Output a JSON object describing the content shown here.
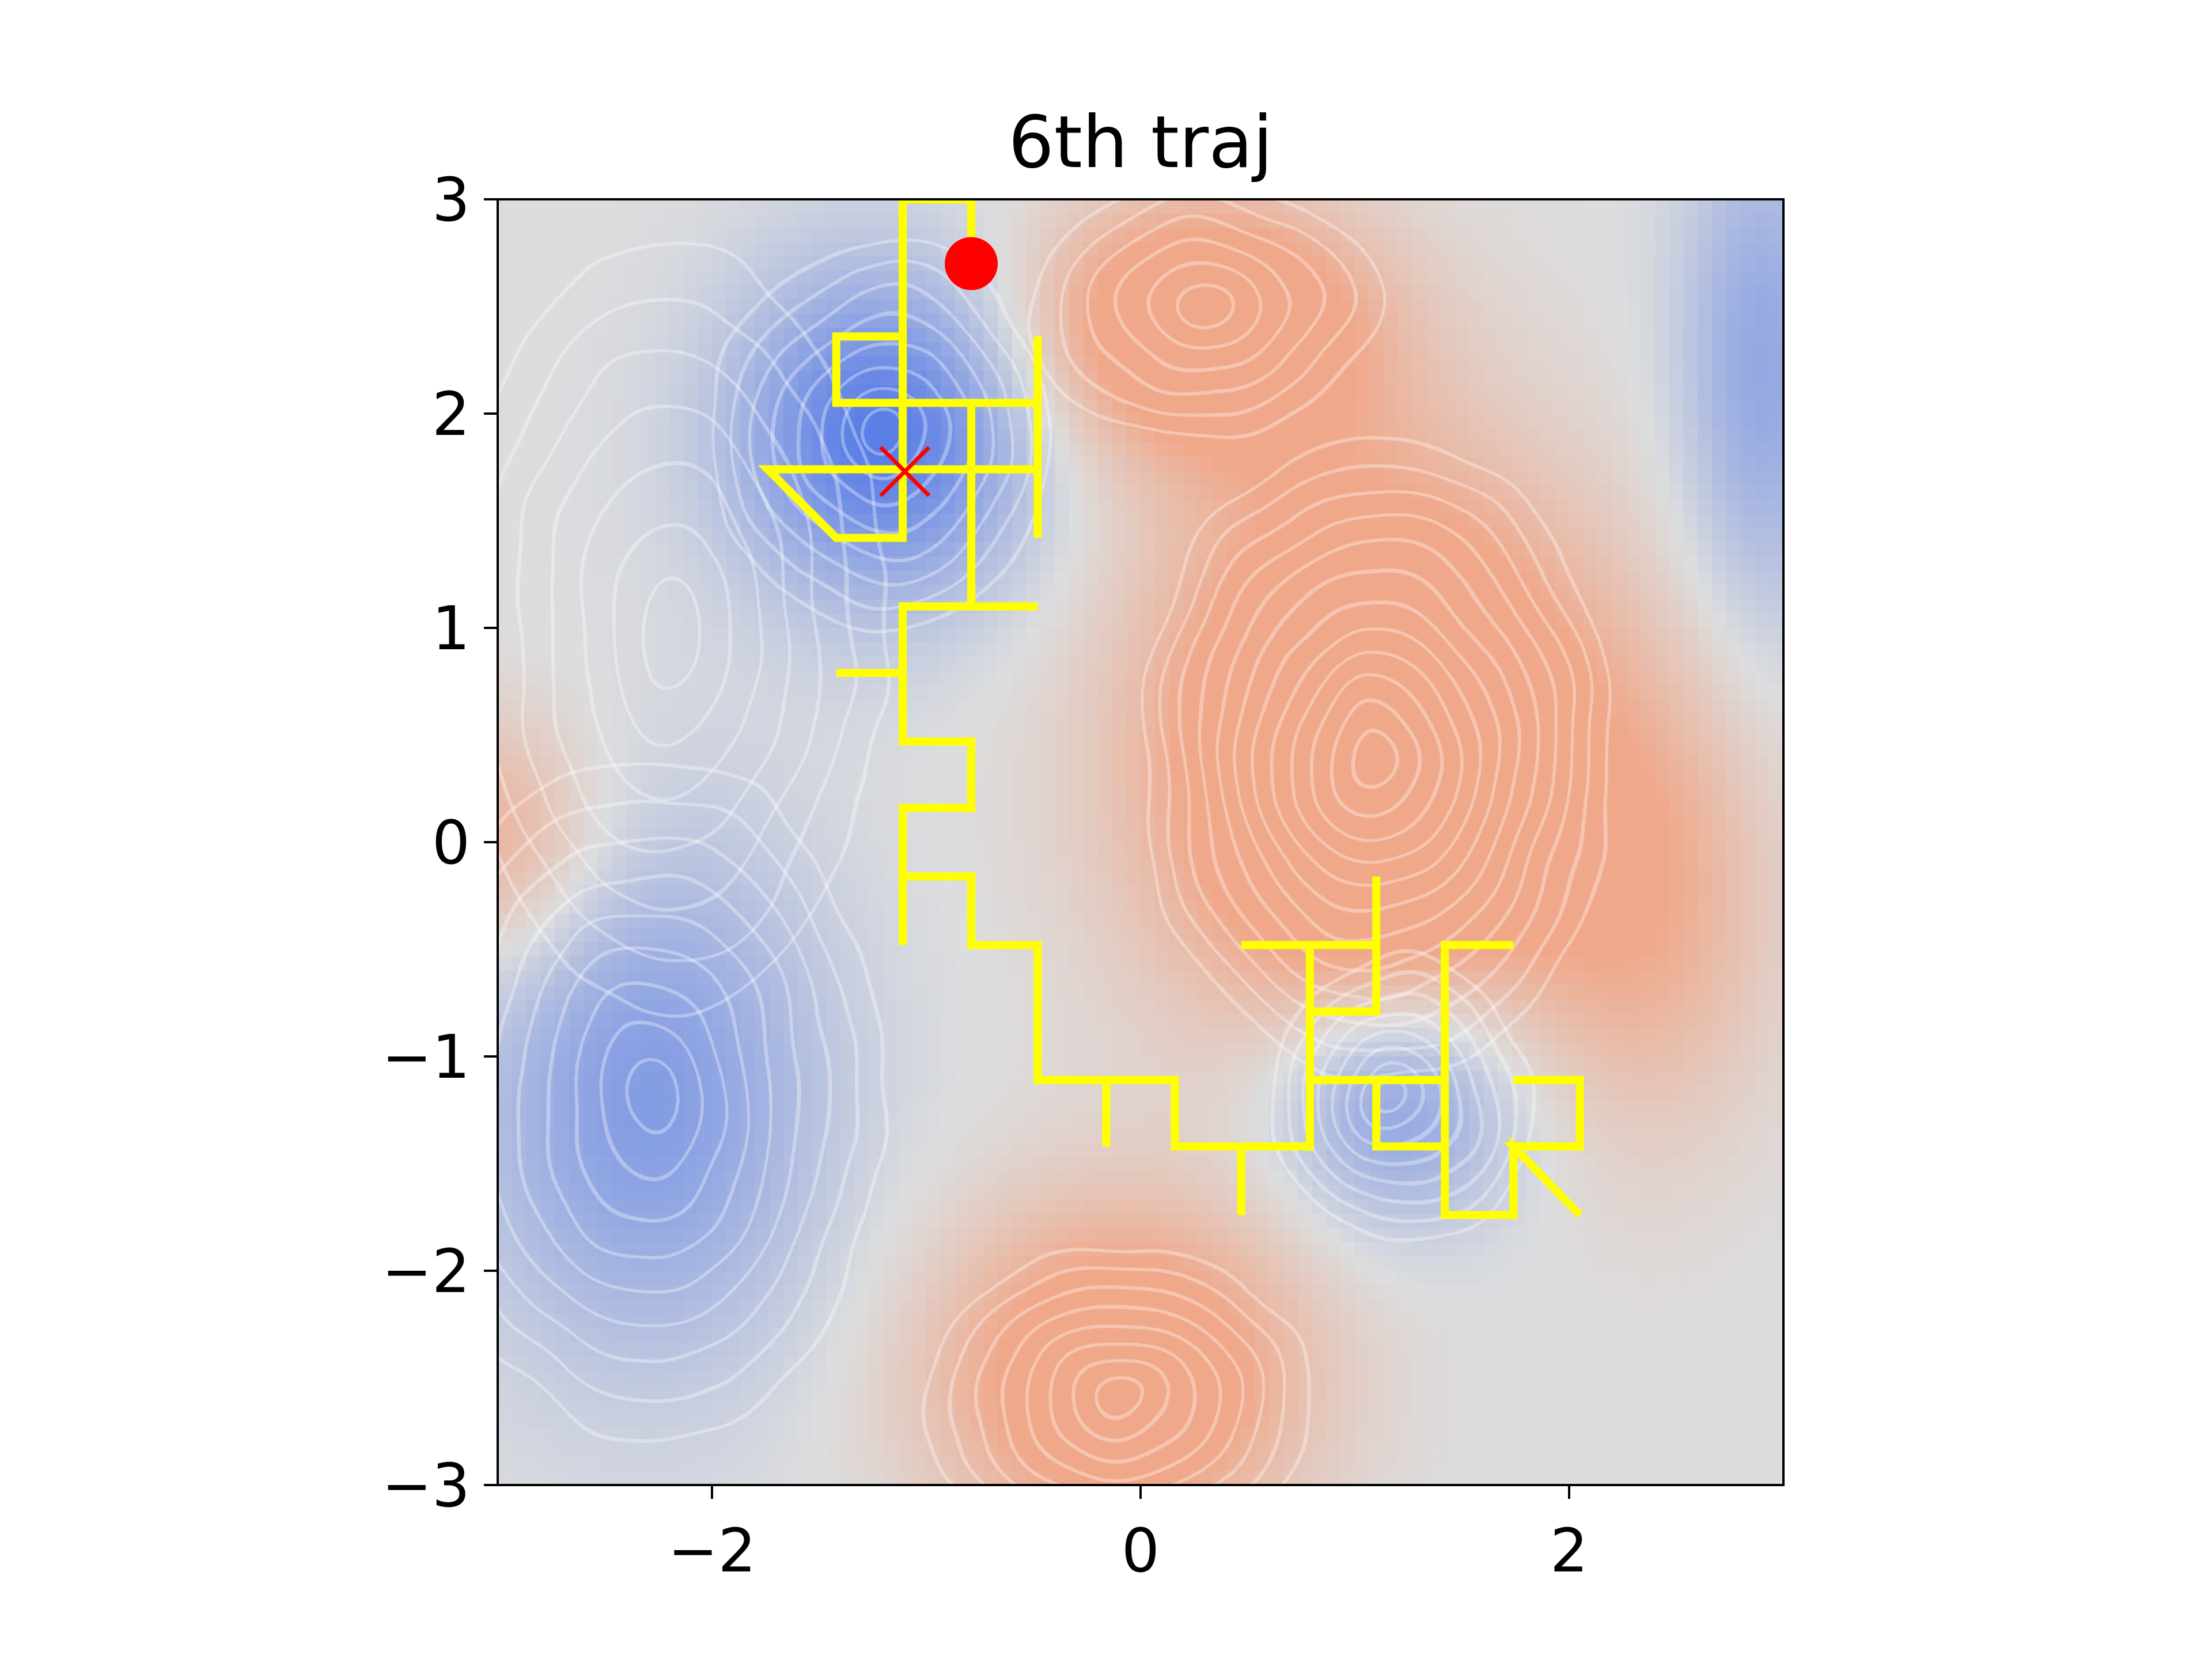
{
  "chart_data": {
    "type": "heatmap",
    "title": "6th traj",
    "xlabel": "",
    "ylabel": "",
    "xlim": [
      -3,
      3
    ],
    "ylim": [
      -3,
      3
    ],
    "x_ticks": [
      {
        "value": -2,
        "label": "−2"
      },
      {
        "value": 0,
        "label": "0"
      },
      {
        "value": 2,
        "label": "2"
      }
    ],
    "y_ticks": [
      {
        "value": 3,
        "label": "3"
      },
      {
        "value": 2,
        "label": "2"
      },
      {
        "value": 1,
        "label": "1"
      },
      {
        "value": 0,
        "label": "0"
      },
      {
        "value": -1,
        "label": "−1"
      },
      {
        "value": -2,
        "label": "−2"
      },
      {
        "value": -3,
        "label": "−3"
      }
    ],
    "colormap": "coolwarm (clipped)",
    "grid": false,
    "trajectory": {
      "color": "#ffff00",
      "points": [
        [
          -0.79,
          2.7
        ],
        [
          -0.79,
          3.0
        ],
        [
          -1.11,
          3.0
        ],
        [
          -1.11,
          2.36
        ],
        [
          -1.42,
          2.36
        ],
        [
          -1.42,
          2.05
        ],
        [
          -0.48,
          2.05
        ],
        [
          -0.48,
          2.36
        ],
        [
          -0.48,
          1.42
        ],
        [
          -0.48,
          1.74
        ],
        [
          -1.42,
          1.74
        ],
        [
          -1.42,
          1.74
        ],
        [
          -1.74,
          1.74
        ],
        [
          -1.42,
          1.42
        ],
        [
          -1.11,
          1.42
        ],
        [
          -1.11,
          2.36
        ],
        [
          -1.11,
          2.05
        ],
        [
          -0.79,
          2.05
        ],
        [
          -0.79,
          1.1
        ],
        [
          -1.11,
          1.1
        ],
        [
          -0.48,
          1.1
        ],
        [
          -1.11,
          1.1
        ],
        [
          -1.11,
          0.79
        ],
        [
          -1.42,
          0.79
        ],
        [
          -1.11,
          0.79
        ],
        [
          -1.11,
          0.47
        ],
        [
          -0.79,
          0.47
        ],
        [
          -0.79,
          0.16
        ],
        [
          -1.11,
          0.16
        ],
        [
          -1.11,
          -0.16
        ],
        [
          -1.11,
          -0.48
        ],
        [
          -1.11,
          -0.16
        ],
        [
          -0.79,
          -0.16
        ],
        [
          -0.79,
          -0.48
        ],
        [
          -0.48,
          -0.48
        ],
        [
          -0.48,
          -1.11
        ],
        [
          -0.16,
          -1.11
        ],
        [
          -0.16,
          -1.42
        ],
        [
          -0.16,
          -1.11
        ],
        [
          0.16,
          -1.11
        ],
        [
          0.16,
          -1.42
        ],
        [
          0.47,
          -1.42
        ],
        [
          0.47,
          -1.74
        ],
        [
          0.47,
          -1.42
        ],
        [
          0.79,
          -1.42
        ],
        [
          0.79,
          -0.48
        ],
        [
          0.47,
          -0.48
        ],
        [
          1.1,
          -0.48
        ],
        [
          1.1,
          -0.16
        ],
        [
          1.1,
          -0.79
        ],
        [
          0.79,
          -0.79
        ],
        [
          0.79,
          -1.11
        ],
        [
          1.42,
          -1.11
        ],
        [
          1.1,
          -1.11
        ],
        [
          1.1,
          -1.42
        ],
        [
          1.42,
          -1.42
        ],
        [
          1.42,
          -0.48
        ],
        [
          1.74,
          -0.48
        ],
        [
          1.42,
          -0.48
        ],
        [
          1.42,
          -1.74
        ],
        [
          1.74,
          -1.74
        ],
        [
          1.74,
          -1.42
        ],
        [
          2.05,
          -1.74
        ],
        [
          1.74,
          -1.42
        ],
        [
          2.05,
          -1.42
        ],
        [
          2.05,
          -1.11
        ],
        [
          1.74,
          -1.11
        ]
      ]
    },
    "start_marker": {
      "x": -0.79,
      "y": 2.7,
      "color": "#ff0000",
      "shape": "circle"
    },
    "target_marker": {
      "x": -1.1,
      "y": 1.73,
      "color": "#ff0000",
      "shape": "x"
    }
  }
}
